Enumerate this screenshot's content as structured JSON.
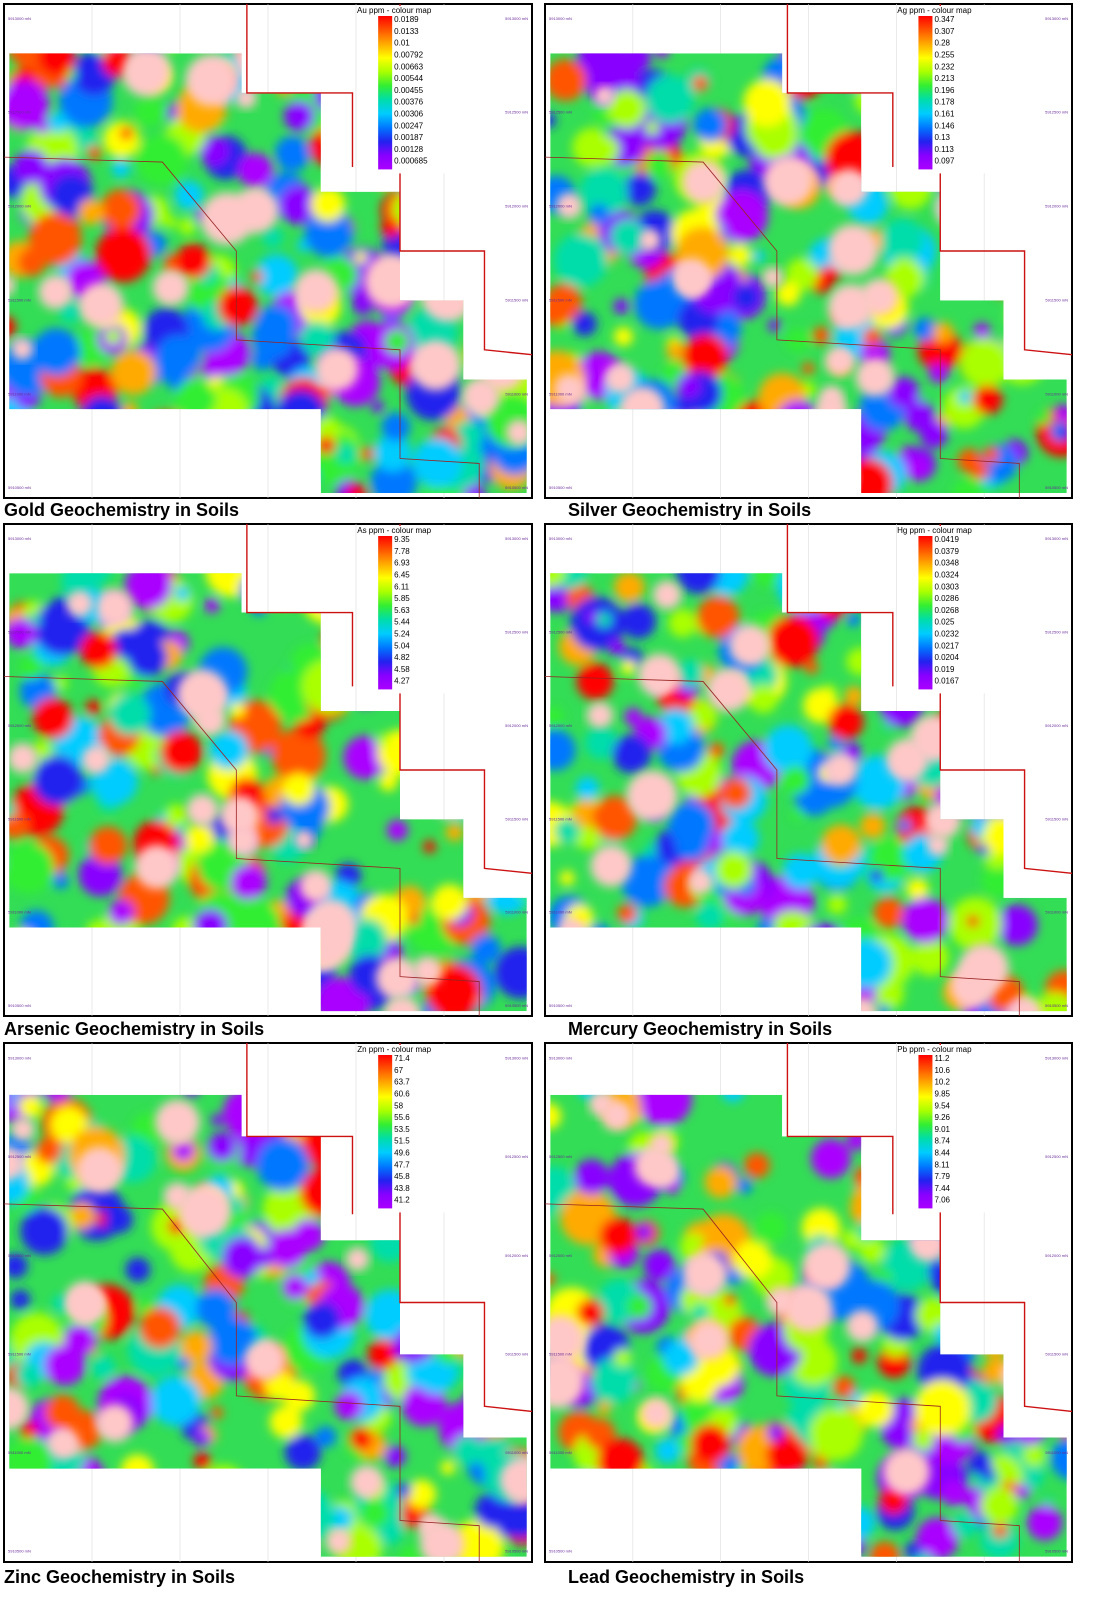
{
  "panels": [
    {
      "caption": "Gold Geochemistry in Soils",
      "legend_title": "Au ppm - colour map",
      "legend": [
        "0.0189",
        "0.0133",
        "0.01",
        "0.00792",
        "0.00663",
        "0.00544",
        "0.00455",
        "0.00376",
        "0.00306",
        "0.00247",
        "0.00187",
        "0.00128",
        "0.000685"
      ]
    },
    {
      "caption": "Silver Geochemistry in Soils",
      "legend_title": "Ag ppm - colour map",
      "legend": [
        "0.347",
        "0.307",
        "0.28",
        "0.255",
        "0.232",
        "0.213",
        "0.196",
        "0.178",
        "0.161",
        "0.146",
        "0.13",
        "0.113",
        "0.097"
      ]
    },
    {
      "caption": "Arsenic Geochemistry in Soils",
      "legend_title": "As ppm - colour map",
      "legend": [
        "9.35",
        "7.78",
        "6.93",
        "6.45",
        "6.11",
        "5.85",
        "5.63",
        "5.44",
        "5.24",
        "5.04",
        "4.82",
        "4.58",
        "4.27"
      ]
    },
    {
      "caption": "Mercury Geochemistry  in Soils",
      "legend_title": "Hg ppm - colour map",
      "legend": [
        "0.0419",
        "0.0379",
        "0.0348",
        "0.0324",
        "0.0303",
        "0.0286",
        "0.0268",
        "0.025",
        "0.0232",
        "0.0217",
        "0.0204",
        "0.019",
        "0.0167"
      ]
    },
    {
      "caption": "Zinc Geochemistry in Soils",
      "legend_title": "Zn ppm - colour map",
      "legend": [
        "71.4",
        "67",
        "63.7",
        "60.6",
        "58",
        "55.6",
        "53.5",
        "51.5",
        "49.6",
        "47.7",
        "45.8",
        "43.8",
        "41.2"
      ]
    },
    {
      "caption": "Lead Geochemistry in Soils",
      "legend_title": "Pb ppm - colour map",
      "legend": [
        "11.2",
        "10.6",
        "10.2",
        "9.85",
        "9.54",
        "9.26",
        "9.01",
        "8.74",
        "8.44",
        "8.11",
        "7.79",
        "7.44",
        "7.06"
      ]
    }
  ],
  "northings": [
    "5913000 mN",
    "5912500 mN",
    "5912000 mN",
    "5911500 mN",
    "5911000 mN",
    "5910500 mN"
  ]
}
